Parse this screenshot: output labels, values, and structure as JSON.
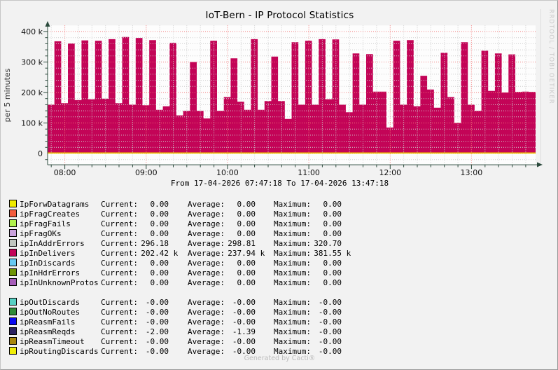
{
  "window": {
    "generated_by": "Generated by Cacti®"
  },
  "chart_data": {
    "type": "area",
    "title": "IoT-Bern - IP Protocol Statistics",
    "ylabel": "per 5 minutes",
    "xlabel_period": "From 17-04-2026 07:47:18 To 17-04-2026 13:47:18",
    "watermark": "RRDTOOL / TOBI OETIKER",
    "time_start": "17-04-2026 07:47:18",
    "time_end": "17-04-2026 13:47:18",
    "x_range_min": 360,
    "sample_step_min": 5,
    "x_ticks": [
      {
        "t_min": 12.7,
        "label": "08:00"
      },
      {
        "t_min": 72.7,
        "label": "09:00"
      },
      {
        "t_min": 132.7,
        "label": "10:00"
      },
      {
        "t_min": 192.7,
        "label": "11:00"
      },
      {
        "t_min": 252.7,
        "label": "12:00"
      },
      {
        "t_min": 312.7,
        "label": "13:00"
      }
    ],
    "x_minor_start_min": 2.7,
    "x_minor_step_min": 10,
    "y_ticks": [
      {
        "v_k": 0,
        "label": "0"
      },
      {
        "v_k": 100,
        "label": "100 k"
      },
      {
        "v_k": 200,
        "label": "200 k"
      },
      {
        "v_k": 300,
        "label": "300 k"
      },
      {
        "v_k": 400,
        "label": "400 k"
      }
    ],
    "y_minor_step_k": 20,
    "ylim_k": [
      -37,
      420
    ],
    "grid": true,
    "legend_position": "bottom",
    "series": [
      {
        "name": "ipInDelivers",
        "type": "area",
        "color": "#C30457",
        "values_k": [
          160,
          368,
          165,
          361,
          175,
          371,
          178,
          370,
          180,
          375,
          165,
          382,
          160,
          379,
          158,
          372,
          143,
          155,
          363,
          125,
          140,
          300,
          140,
          115,
          370,
          140,
          185,
          312,
          170,
          143,
          375,
          143,
          172,
          318,
          172,
          113,
          365,
          160,
          370,
          160,
          375,
          178,
          374,
          160,
          135,
          328,
          160,
          326,
          203,
          203,
          85,
          370,
          160,
          372,
          155,
          255,
          210,
          150,
          330,
          185,
          100,
          365,
          160,
          140,
          337,
          205,
          328,
          200,
          325,
          202,
          203,
          202,
          202
        ]
      }
    ],
    "zero_line": {
      "color": "#EDC400"
    },
    "colors": {
      "page_bg": "#F2F2F2",
      "canvas_bg": "#FDFDFD",
      "grid_major": "#F37B7B",
      "grid_minor": "#CFCFCF",
      "axis": "#2B4A3C"
    }
  },
  "legend": {
    "col_labels": [
      "Current:",
      "Average:",
      "Maximum:"
    ],
    "groups": [
      [
        {
          "label": "IpForwDatagrams",
          "color": "#F0EC00",
          "current": "0.00",
          "average": "0.00",
          "maximum": "0.00"
        },
        {
          "label": "ipFragCreates",
          "color": "#F25B3D",
          "current": "0.00",
          "average": "0.00",
          "maximum": "0.00"
        },
        {
          "label": "ipFragFails",
          "color": "#B0F24C",
          "current": "0.00",
          "average": "0.00",
          "maximum": "0.00"
        },
        {
          "label": "ipFragOKs",
          "color": "#C9A1DC",
          "current": "0.00",
          "average": "0.00",
          "maximum": "0.00"
        },
        {
          "label": "ipInAddrErrors",
          "color": "#C0C6C0",
          "current": "296.18",
          "average": "298.81",
          "maximum": "320.70"
        },
        {
          "label": "ipInDelivers",
          "color": "#C30457",
          "current": "202.42 k",
          "average": "237.94 k",
          "maximum": "381.55 k"
        },
        {
          "label": "ipInDiscards",
          "color": "#67C9F2",
          "current": "0.00",
          "average": "0.00",
          "maximum": "0.00"
        },
        {
          "label": "ipInHdrErrors",
          "color": "#6E9405",
          "current": "0.00",
          "average": "0.00",
          "maximum": "0.00"
        },
        {
          "label": "ipInUnknownProtos",
          "color": "#A55CB8",
          "current": "0.00",
          "average": "0.00",
          "maximum": "0.00"
        }
      ],
      [
        {
          "label": "ipOutDiscards",
          "color": "#57CFC2",
          "current": "-0.00",
          "average": "-0.00",
          "maximum": "-0.00"
        },
        {
          "label": "ipOutNoRoutes",
          "color": "#2F8B37",
          "current": "-0.00",
          "average": "-0.00",
          "maximum": "-0.00"
        },
        {
          "label": "ipReasmFails",
          "color": "#0808F0",
          "current": "-0.00",
          "average": "-0.00",
          "maximum": "-0.00"
        },
        {
          "label": "ipReasmReqds",
          "color": "#2B2160",
          "current": "-2.00",
          "average": "-1.39",
          "maximum": "-0.00"
        },
        {
          "label": "ipReasmTimeout",
          "color": "#A8870C",
          "current": "-0.00",
          "average": "-0.00",
          "maximum": "-0.00"
        },
        {
          "label": "ipRoutingDiscards",
          "color": "#F0EE08",
          "current": "-0.00",
          "average": "-0.00",
          "maximum": "-0.00"
        }
      ]
    ]
  }
}
